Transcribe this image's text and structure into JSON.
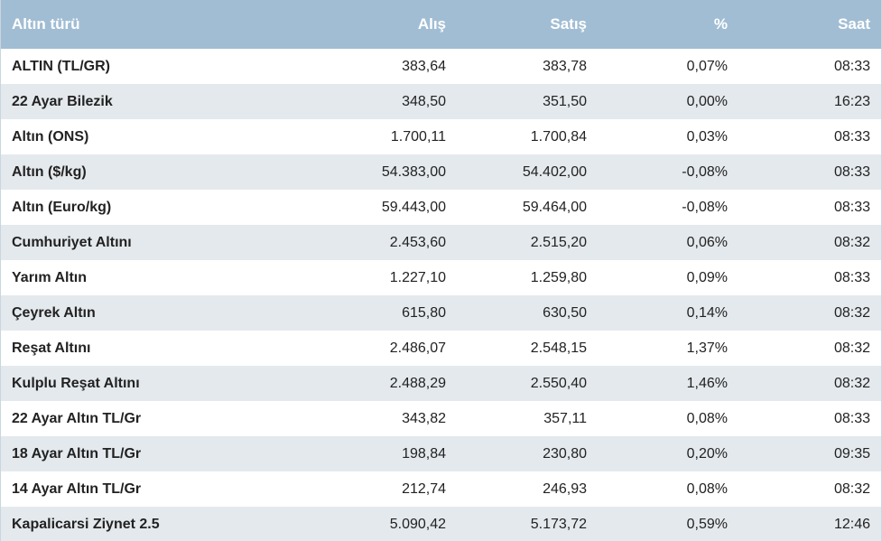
{
  "table": {
    "headers": {
      "name": "Altın türü",
      "buy": "Alış",
      "sell": "Satış",
      "pct": "%",
      "time": "Saat"
    },
    "rows": [
      {
        "name": "ALTIN (TL/GR)",
        "buy": "383,64",
        "sell": "383,78",
        "pct": "0,07%",
        "time": "08:33"
      },
      {
        "name": "22 Ayar Bilezik",
        "buy": "348,50",
        "sell": "351,50",
        "pct": "0,00%",
        "time": "16:23"
      },
      {
        "name": "Altın (ONS)",
        "buy": "1.700,11",
        "sell": "1.700,84",
        "pct": "0,03%",
        "time": "08:33"
      },
      {
        "name": "Altın ($/kg)",
        "buy": "54.383,00",
        "sell": "54.402,00",
        "pct": "-0,08%",
        "time": "08:33"
      },
      {
        "name": "Altın (Euro/kg)",
        "buy": "59.443,00",
        "sell": "59.464,00",
        "pct": "-0,08%",
        "time": "08:33"
      },
      {
        "name": "Cumhuriyet Altını",
        "buy": "2.453,60",
        "sell": "2.515,20",
        "pct": "0,06%",
        "time": "08:32"
      },
      {
        "name": "Yarım Altın",
        "buy": "1.227,10",
        "sell": "1.259,80",
        "pct": "0,09%",
        "time": "08:33"
      },
      {
        "name": "Çeyrek Altın",
        "buy": "615,80",
        "sell": "630,50",
        "pct": "0,14%",
        "time": "08:32"
      },
      {
        "name": "Reşat Altını",
        "buy": "2.486,07",
        "sell": "2.548,15",
        "pct": "1,37%",
        "time": "08:32"
      },
      {
        "name": "Kulplu Reşat Altını",
        "buy": "2.488,29",
        "sell": "2.550,40",
        "pct": "1,46%",
        "time": "08:32"
      },
      {
        "name": "22 Ayar Altın TL/Gr",
        "buy": "343,82",
        "sell": "357,11",
        "pct": "0,08%",
        "time": "08:33"
      },
      {
        "name": "18 Ayar Altın TL/Gr",
        "buy": "198,84",
        "sell": "230,80",
        "pct": "0,20%",
        "time": "09:35"
      },
      {
        "name": "14 Ayar Altın TL/Gr",
        "buy": "212,74",
        "sell": "246,93",
        "pct": "0,08%",
        "time": "08:32"
      },
      {
        "name": "Kapalicarsi Ziynet 2.5",
        "buy": "5.090,42",
        "sell": "5.173,72",
        "pct": "0,59%",
        "time": "12:46"
      }
    ]
  },
  "colors": {
    "header_bg": "#a1bdd3",
    "header_text": "#ffffff",
    "row_alt_bg": "#e4e9ed",
    "row_bg": "#ffffff"
  }
}
